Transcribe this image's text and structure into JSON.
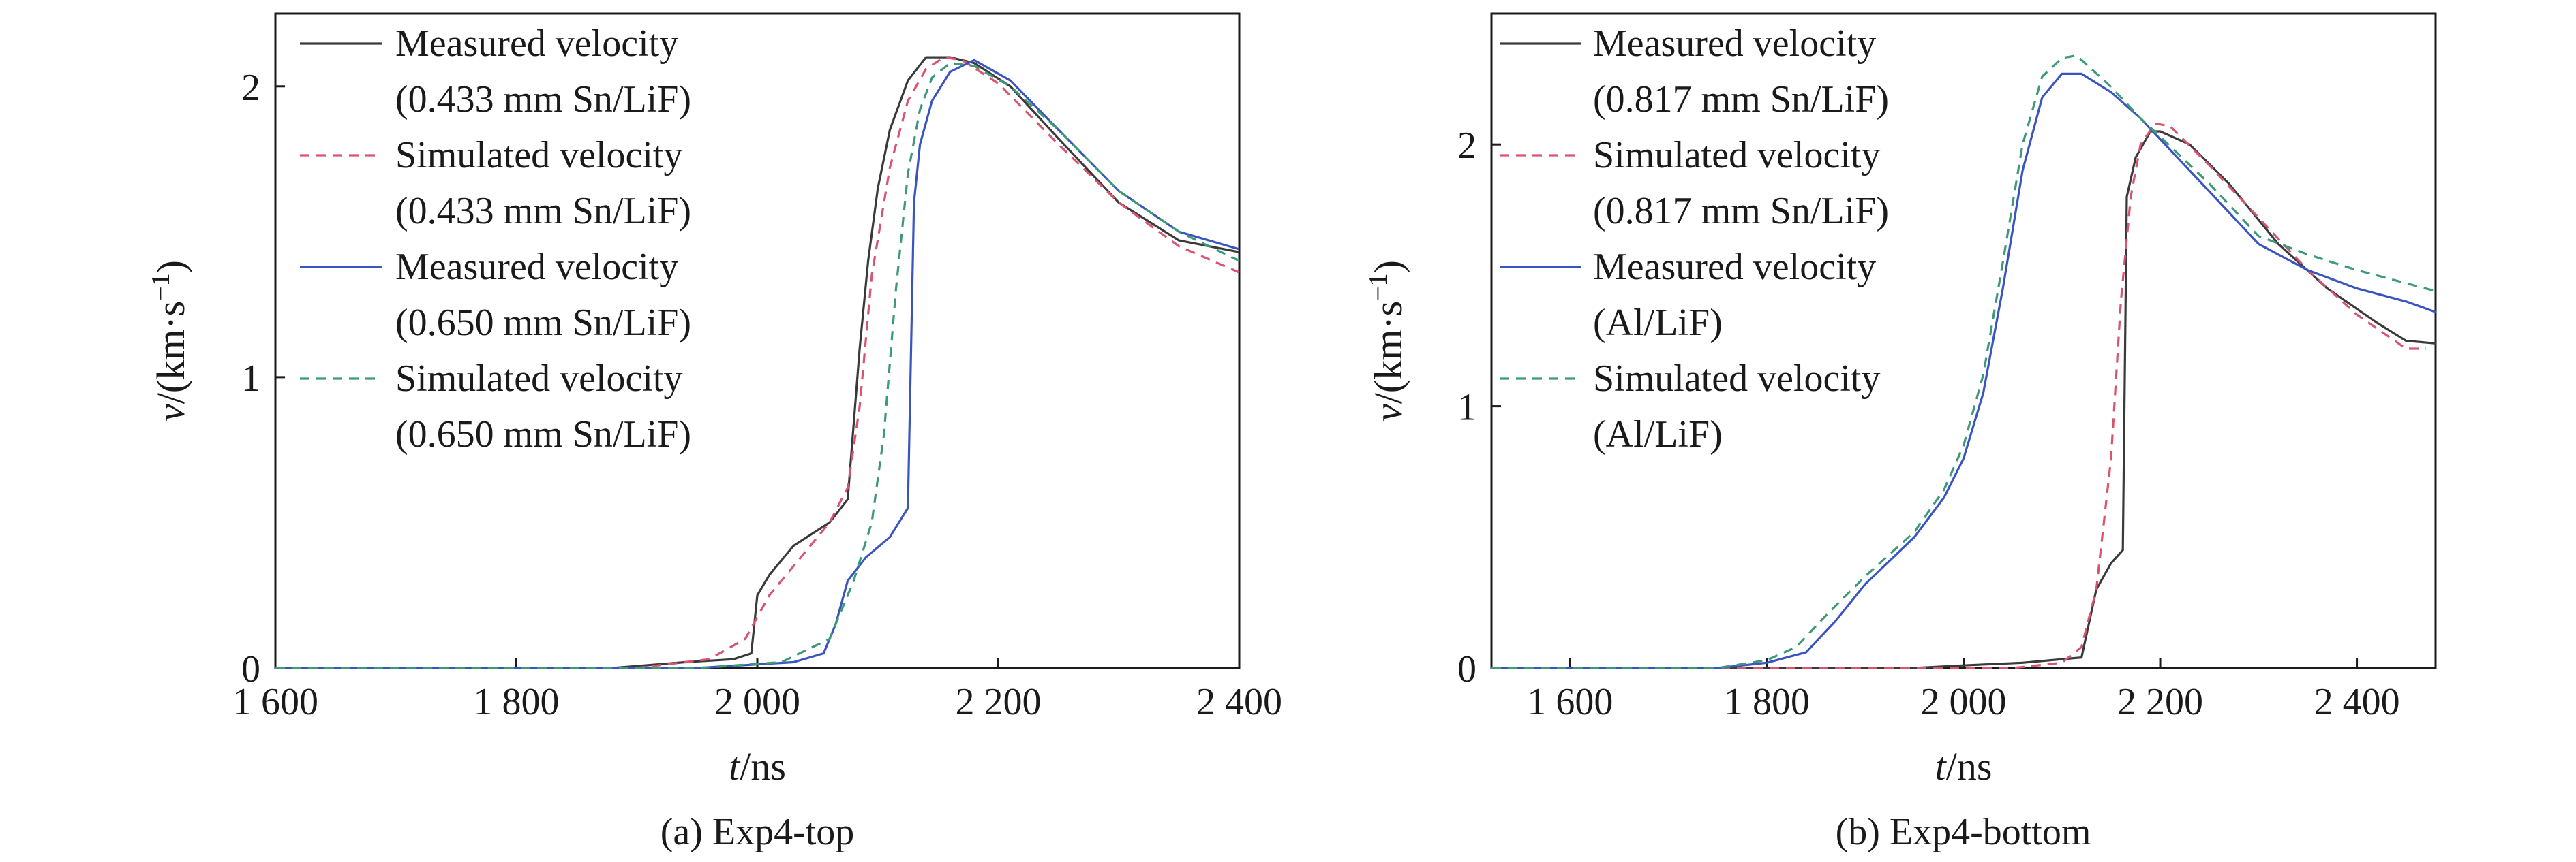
{
  "colors": {
    "measured_black": "#3a3a3a",
    "simulated_red": "#d9546e",
    "measured_blue": "#3b55c0",
    "simulated_green": "#3c9a78",
    "axis": "#1a1a1a"
  },
  "chart_data": [
    {
      "type": "line",
      "caption": "(a) Exp4-top",
      "xlabel_italic": "t",
      "xlabel_unit": "/ns",
      "ylabel_italic": "v",
      "ylabel_unit": "/(km·s",
      "ylabel_exp": "−1",
      "ylabel_close": ")",
      "xlim": [
        1600,
        2400
      ],
      "ylim": [
        0,
        2.25
      ],
      "xticks": [
        1600,
        1800,
        2000,
        2200,
        2400
      ],
      "xtick_labels": [
        "1 600",
        "1 800",
        "2 000",
        "2 200",
        "2 400"
      ],
      "yticks": [
        0,
        1,
        2
      ],
      "ytick_labels": [
        "0",
        "1",
        "2"
      ],
      "series": [
        {
          "name": "Measured velocity",
          "name2": "(0.433 mm Sn/LiF)",
          "style": "solid",
          "color_key": "measured_black",
          "x": [
            1600,
            1880,
            1940,
            1980,
            1995,
            2000,
            2010,
            2030,
            2060,
            2075,
            2085,
            2092,
            2100,
            2110,
            2125,
            2140,
            2160,
            2180,
            2210,
            2250,
            2300,
            2350,
            2400
          ],
          "y": [
            0,
            0,
            0.02,
            0.03,
            0.05,
            0.25,
            0.32,
            0.42,
            0.5,
            0.58,
            1.1,
            1.4,
            1.65,
            1.85,
            2.02,
            2.1,
            2.1,
            2.08,
            2.0,
            1.82,
            1.6,
            1.47,
            1.43
          ]
        },
        {
          "name": "Simulated velocity",
          "name2": "(0.433 mm Sn/LiF)",
          "style": "dashed",
          "color_key": "simulated_red",
          "x": [
            1600,
            1900,
            1960,
            1990,
            2010,
            2040,
            2060,
            2075,
            2085,
            2095,
            2110,
            2125,
            2140,
            2155,
            2170,
            2200,
            2250,
            2300,
            2350,
            2400
          ],
          "y": [
            0,
            0,
            0.03,
            0.1,
            0.25,
            0.4,
            0.5,
            0.62,
            0.9,
            1.35,
            1.72,
            1.95,
            2.06,
            2.1,
            2.09,
            2.01,
            1.8,
            1.6,
            1.45,
            1.36
          ]
        },
        {
          "name": "Measured velocity",
          "name2": "(0.650 mm Sn/LiF)",
          "style": "solid",
          "color_key": "measured_blue",
          "x": [
            1600,
            1950,
            2030,
            2055,
            2065,
            2075,
            2090,
            2110,
            2125,
            2130,
            2135,
            2145,
            2160,
            2180,
            2210,
            2250,
            2300,
            2350,
            2400
          ],
          "y": [
            0,
            0,
            0.02,
            0.05,
            0.15,
            0.3,
            0.38,
            0.45,
            0.55,
            1.6,
            1.8,
            1.95,
            2.05,
            2.09,
            2.02,
            1.85,
            1.64,
            1.5,
            1.44
          ]
        },
        {
          "name": "Simulated velocity",
          "name2": "(0.650 mm Sn/LiF)",
          "style": "dashed",
          "color_key": "simulated_green",
          "x": [
            1600,
            1950,
            2020,
            2060,
            2080,
            2095,
            2105,
            2115,
            2125,
            2135,
            2145,
            2160,
            2180,
            2210,
            2250,
            2300,
            2350,
            2400
          ],
          "y": [
            0,
            0,
            0.02,
            0.1,
            0.3,
            0.5,
            0.8,
            1.3,
            1.7,
            1.92,
            2.03,
            2.08,
            2.07,
            2.0,
            1.85,
            1.64,
            1.5,
            1.4
          ]
        }
      ]
    },
    {
      "type": "line",
      "caption": "(b) Exp4-bottom",
      "xlabel_italic": "t",
      "xlabel_unit": "/ns",
      "ylabel_italic": "v",
      "ylabel_unit": "/(km·s",
      "ylabel_exp": "−1",
      "ylabel_close": ")",
      "xlim": [
        1520,
        2480
      ],
      "ylim": [
        0,
        2.5
      ],
      "xticks": [
        1600,
        1800,
        2000,
        2200,
        2400
      ],
      "xtick_labels": [
        "1 600",
        "1 800",
        "2 000",
        "2 200",
        "2 400"
      ],
      "yticks": [
        0,
        1,
        2
      ],
      "ytick_labels": [
        "0",
        "1",
        "2"
      ],
      "series": [
        {
          "name": "Measured velocity",
          "name2": "(0.817 mm Sn/LiF)",
          "style": "solid",
          "color_key": "measured_black",
          "x": [
            1520,
            1950,
            2000,
            2060,
            2120,
            2135,
            2150,
            2162,
            2166,
            2175,
            2190,
            2200,
            2230,
            2270,
            2320,
            2370,
            2420,
            2450,
            2480
          ],
          "y": [
            0,
            0,
            0.01,
            0.02,
            0.04,
            0.3,
            0.4,
            0.45,
            1.8,
            1.95,
            2.05,
            2.05,
            2.0,
            1.85,
            1.62,
            1.45,
            1.32,
            1.25,
            1.24
          ]
        },
        {
          "name": "Simulated velocity",
          "name2": "(0.817 mm Sn/LiF)",
          "style": "dashed",
          "color_key": "simulated_red",
          "x": [
            1520,
            2050,
            2100,
            2120,
            2135,
            2150,
            2160,
            2170,
            2180,
            2195,
            2210,
            2250,
            2300,
            2350,
            2400,
            2450,
            2470
          ],
          "y": [
            0,
            0,
            0.02,
            0.08,
            0.3,
            0.8,
            1.4,
            1.8,
            2.0,
            2.08,
            2.07,
            1.92,
            1.72,
            1.52,
            1.35,
            1.22,
            1.22
          ]
        },
        {
          "name": "Measured velocity",
          "name2": "(Al/LiF)",
          "style": "solid",
          "color_key": "measured_blue",
          "x": [
            1520,
            1750,
            1800,
            1840,
            1870,
            1900,
            1950,
            1980,
            2000,
            2020,
            2040,
            2060,
            2080,
            2100,
            2120,
            2150,
            2180,
            2200,
            2250,
            2300,
            2350,
            2400,
            2450,
            2480
          ],
          "y": [
            0,
            0,
            0.02,
            0.06,
            0.18,
            0.32,
            0.5,
            0.65,
            0.8,
            1.05,
            1.45,
            1.9,
            2.18,
            2.27,
            2.27,
            2.2,
            2.1,
            2.02,
            1.82,
            1.62,
            1.52,
            1.45,
            1.4,
            1.36
          ]
        },
        {
          "name": "Simulated velocity",
          "name2": "(Al/LiF)",
          "style": "dashed",
          "color_key": "simulated_green",
          "x": [
            1520,
            1750,
            1800,
            1830,
            1860,
            1900,
            1950,
            1980,
            2000,
            2020,
            2040,
            2060,
            2080,
            2100,
            2115,
            2150,
            2180,
            2200,
            2250,
            2300,
            2350,
            2400,
            2450,
            2480
          ],
          "y": [
            0,
            0,
            0.03,
            0.08,
            0.2,
            0.35,
            0.52,
            0.68,
            0.85,
            1.12,
            1.55,
            2.0,
            2.26,
            2.33,
            2.34,
            2.22,
            2.1,
            2.03,
            1.85,
            1.65,
            1.58,
            1.52,
            1.47,
            1.44
          ]
        }
      ]
    }
  ]
}
